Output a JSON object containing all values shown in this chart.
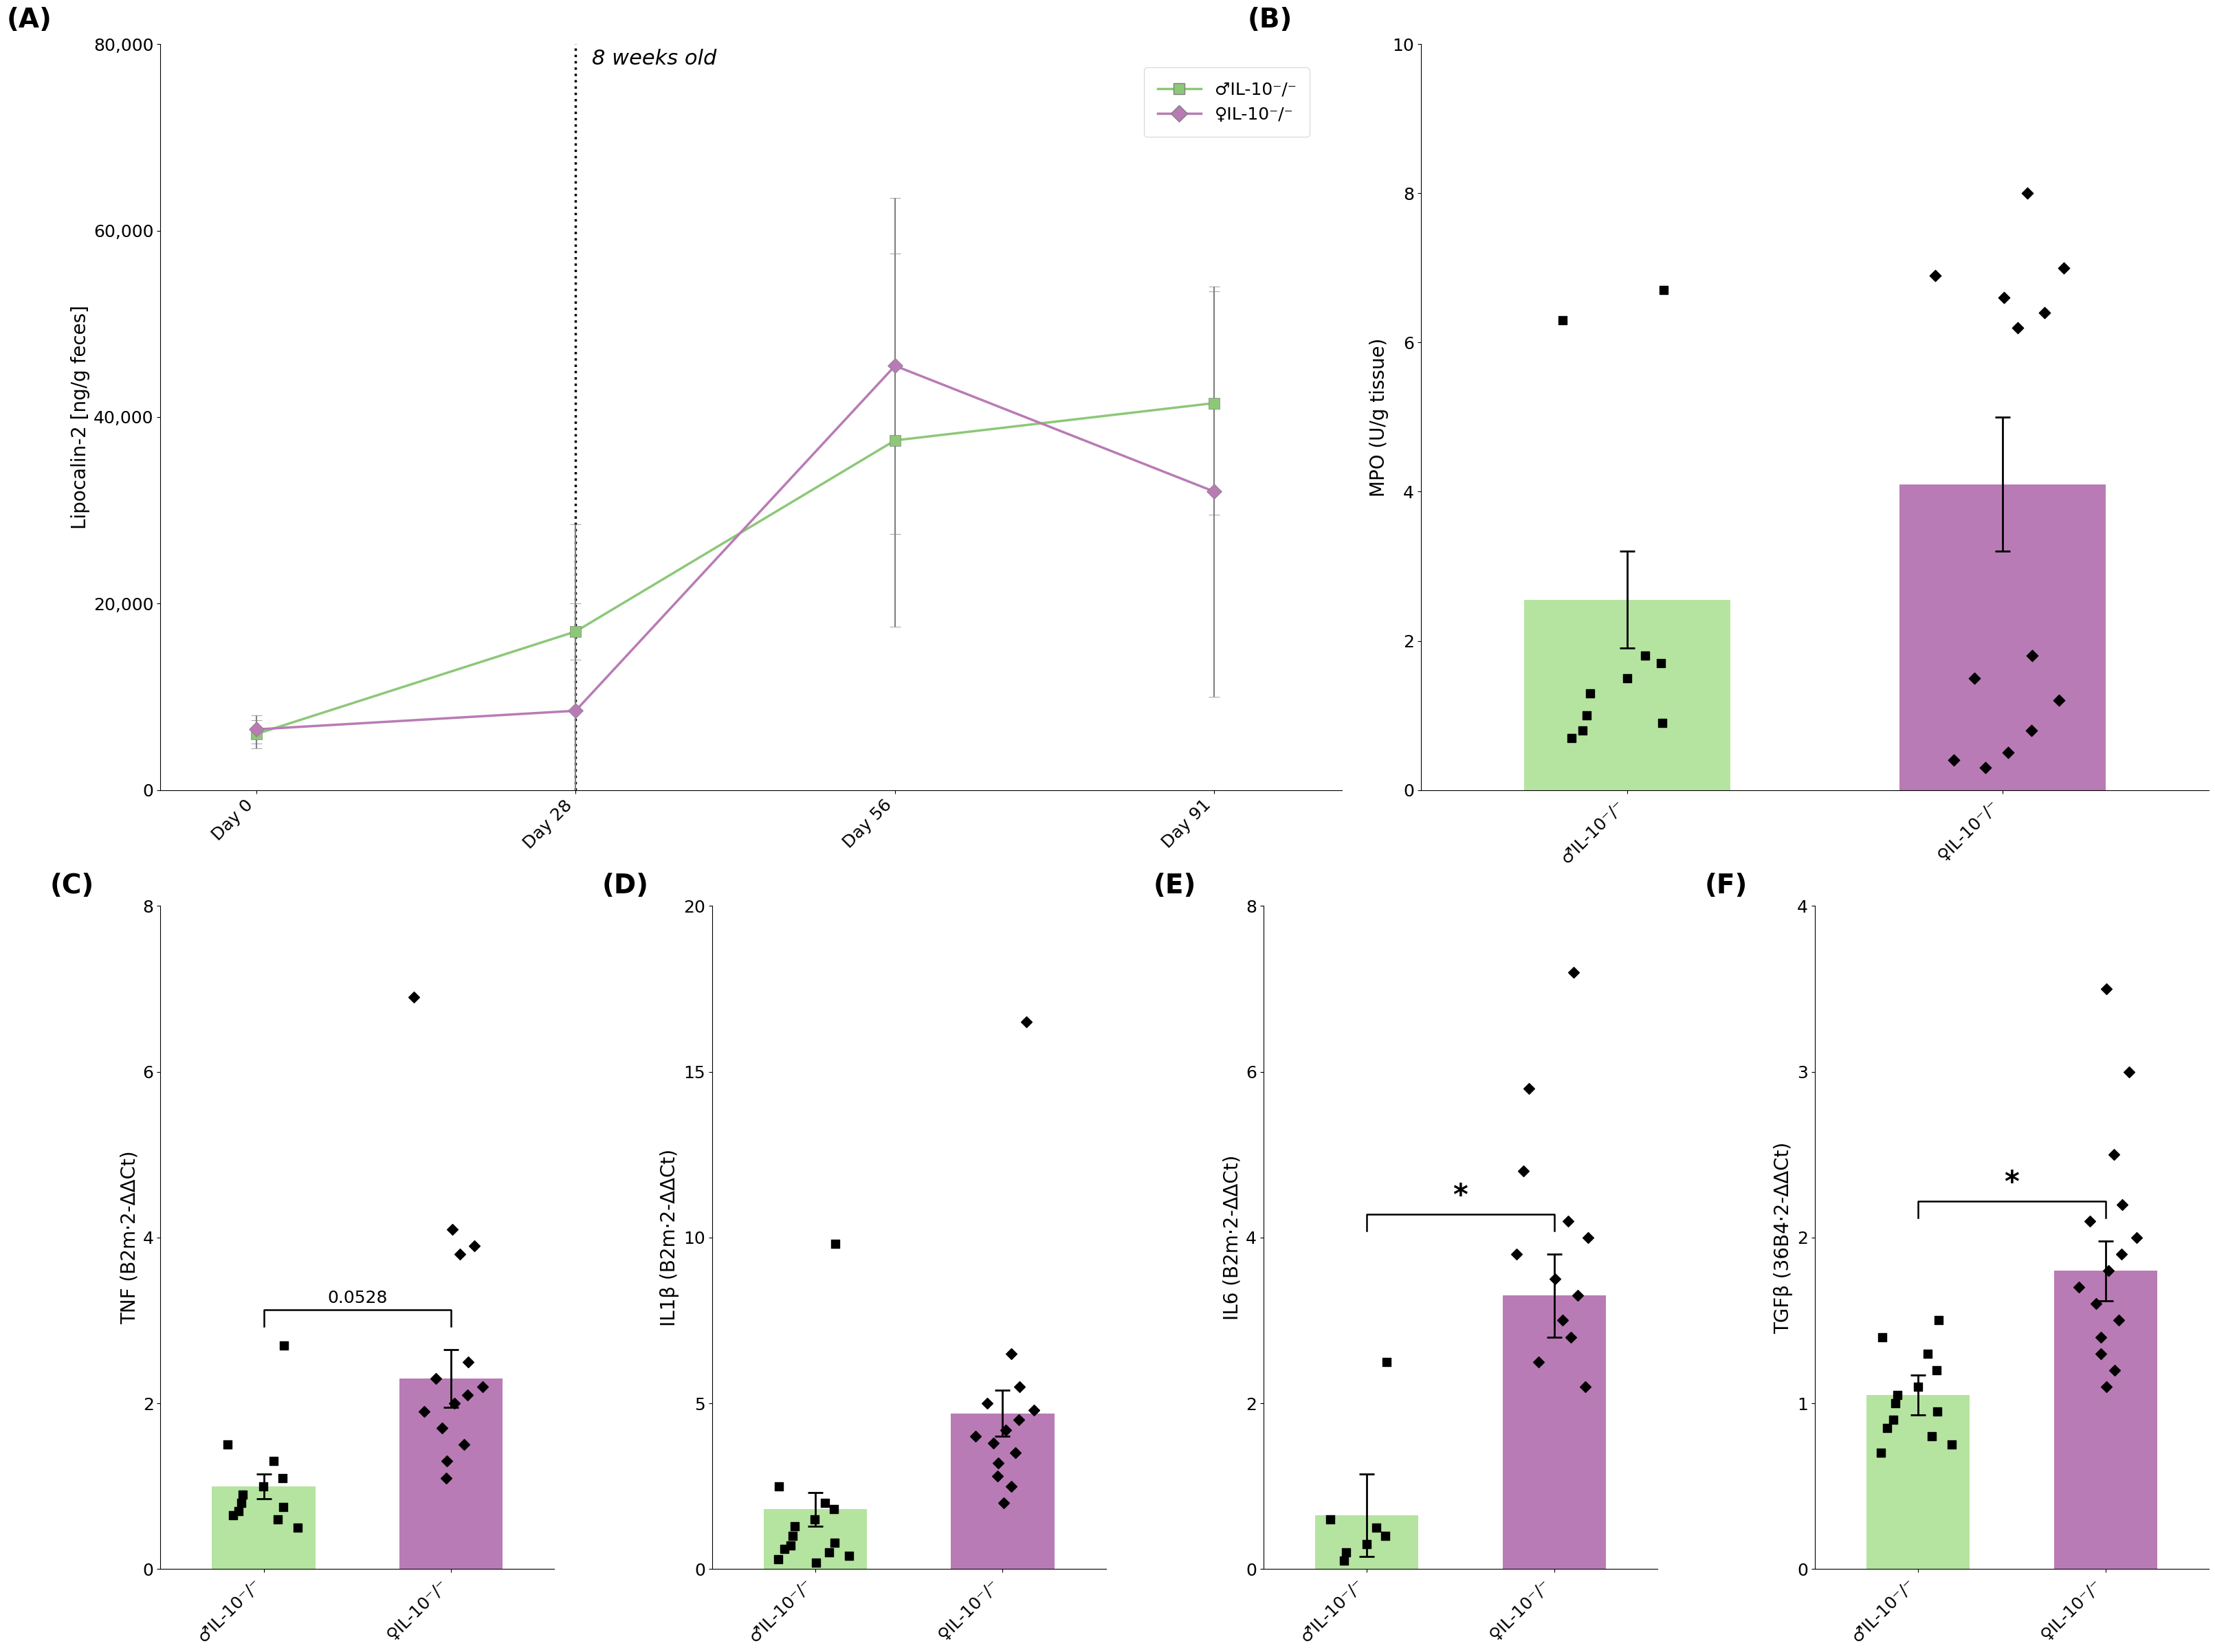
{
  "panel_A": {
    "title": "(A)",
    "ylabel": "Lipocalin-2 [ng/g feces]",
    "annotation": "8 weeks old",
    "xticklabels": [
      "Day 0",
      "Day 28",
      "Day 56",
      "Day 91"
    ],
    "x": [
      0,
      1,
      2,
      3
    ],
    "male_mean": [
      6000,
      17000,
      37500,
      41500
    ],
    "male_err": [
      1500,
      3000,
      20000,
      12000
    ],
    "female_mean": [
      6500,
      8500,
      45500,
      32000
    ],
    "female_err": [
      1500,
      20000,
      18000,
      22000
    ],
    "male_color": "#8dc878",
    "female_color": "#b97bb5",
    "ylim": [
      0,
      80000
    ],
    "yticks": [
      0,
      20000,
      40000,
      60000,
      80000
    ],
    "vline_x": 1,
    "legend_male": "♂IL-10⁻/⁻",
    "legend_female": "♀IL-10⁻/⁻"
  },
  "panel_B": {
    "title": "(B)",
    "ylabel": "MPO (U/g tissue)",
    "xlabels": [
      "♂IL-10⁻/⁻",
      "♀IL-10⁻/⁻"
    ],
    "bar_means": [
      2.55,
      4.1
    ],
    "bar_errs": [
      0.65,
      0.9
    ],
    "bar_colors": [
      "#b5e4a0",
      "#b97bb5"
    ],
    "ylim": [
      0,
      10
    ],
    "yticks": [
      0,
      2,
      4,
      6,
      8,
      10
    ],
    "male_dots": [
      6.7,
      6.3,
      1.8,
      1.7,
      1.5,
      1.3,
      1.0,
      0.9,
      0.8,
      0.7
    ],
    "female_dots": [
      8.0,
      7.0,
      6.9,
      6.6,
      6.4,
      6.2,
      1.8,
      1.5,
      1.2,
      0.8,
      0.5,
      0.4,
      0.3
    ]
  },
  "panel_C": {
    "title": "(C)",
    "ylabel": "TNF (B2m·2-ΔΔCt)",
    "xlabels": [
      "♂IL-10⁻/⁻",
      "♀IL-10⁻/⁻"
    ],
    "bar_means": [
      1.0,
      2.3
    ],
    "bar_errs": [
      0.15,
      0.35
    ],
    "bar_colors": [
      "#b5e4a0",
      "#b97bb5"
    ],
    "ylim": [
      0,
      8
    ],
    "yticks": [
      0,
      2,
      4,
      6,
      8
    ],
    "significance": "0.0528",
    "male_dots": [
      2.7,
      1.5,
      1.3,
      1.1,
      1.0,
      0.9,
      0.8,
      0.75,
      0.7,
      0.65,
      0.6,
      0.5
    ],
    "female_dots": [
      6.9,
      4.1,
      3.9,
      3.8,
      2.5,
      2.3,
      2.2,
      2.1,
      2.0,
      1.9,
      1.7,
      1.5,
      1.3,
      1.1
    ]
  },
  "panel_D": {
    "title": "(D)",
    "ylabel": "IL1β (B2m·2-ΔΔCt)",
    "xlabels": [
      "♂IL-10⁻/⁻",
      "♀IL-10⁻/⁻"
    ],
    "bar_means": [
      1.8,
      4.7
    ],
    "bar_errs": [
      0.5,
      0.7
    ],
    "bar_colors": [
      "#b5e4a0",
      "#b97bb5"
    ],
    "ylim": [
      0,
      20
    ],
    "yticks": [
      0,
      5,
      10,
      15,
      20
    ],
    "significance": null,
    "male_dots": [
      9.8,
      2.5,
      2.0,
      1.8,
      1.5,
      1.3,
      1.0,
      0.8,
      0.7,
      0.6,
      0.5,
      0.4,
      0.3,
      0.2
    ],
    "female_dots": [
      16.5,
      6.5,
      5.5,
      5.0,
      4.8,
      4.5,
      4.2,
      4.0,
      3.8,
      3.5,
      3.2,
      2.8,
      2.5,
      2.0
    ]
  },
  "panel_E": {
    "title": "(E)",
    "ylabel": "IL6 (B2m·2-ΔΔCt)",
    "xlabels": [
      "♂IL-10⁻/⁻",
      "♀IL-10⁻/⁻"
    ],
    "bar_means": [
      0.65,
      3.3
    ],
    "bar_errs": [
      0.5,
      0.5
    ],
    "bar_colors": [
      "#b5e4a0",
      "#b97bb5"
    ],
    "ylim": [
      0,
      8
    ],
    "yticks": [
      0,
      2,
      4,
      6,
      8
    ],
    "significance": "*",
    "male_dots": [
      2.5,
      0.6,
      0.5,
      0.4,
      0.3,
      0.2,
      0.1
    ],
    "female_dots": [
      7.2,
      5.8,
      4.8,
      4.2,
      4.0,
      3.8,
      3.5,
      3.3,
      3.0,
      2.8,
      2.5,
      2.2
    ]
  },
  "panel_F": {
    "title": "(F)",
    "ylabel": "TGFβ (36B4·2-ΔΔCt)",
    "xlabels": [
      "♂IL-10⁻/⁻",
      "♀IL-10⁻/⁻"
    ],
    "bar_means": [
      1.05,
      1.8
    ],
    "bar_errs": [
      0.12,
      0.18
    ],
    "bar_colors": [
      "#b5e4a0",
      "#b97bb5"
    ],
    "ylim": [
      0,
      4
    ],
    "yticks": [
      0,
      1,
      2,
      3,
      4
    ],
    "significance": "*",
    "male_dots": [
      1.5,
      1.4,
      1.3,
      1.2,
      1.1,
      1.05,
      1.0,
      0.95,
      0.9,
      0.85,
      0.8,
      0.75,
      0.7
    ],
    "female_dots": [
      3.5,
      3.0,
      2.5,
      2.2,
      2.1,
      2.0,
      1.9,
      1.8,
      1.7,
      1.6,
      1.5,
      1.4,
      1.3,
      1.2,
      1.1
    ]
  }
}
